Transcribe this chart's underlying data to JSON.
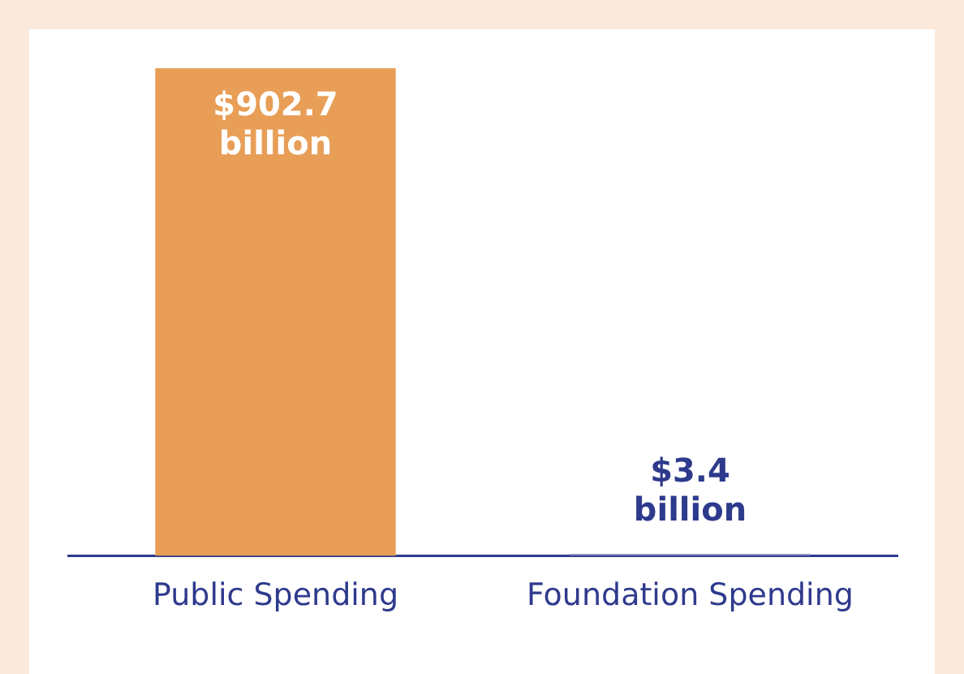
{
  "chart_data": {
    "type": "bar",
    "categories": [
      "Public Spending",
      "Foundation Spending"
    ],
    "values": [
      902.7,
      3.4
    ],
    "colors": [
      "#e89e57",
      "#7f7fbf"
    ],
    "value_labels": [
      "$902.7 billion",
      "$3.4 billion"
    ],
    "grid": false,
    "legend": false,
    "tick_labels": "x"
  }
}
